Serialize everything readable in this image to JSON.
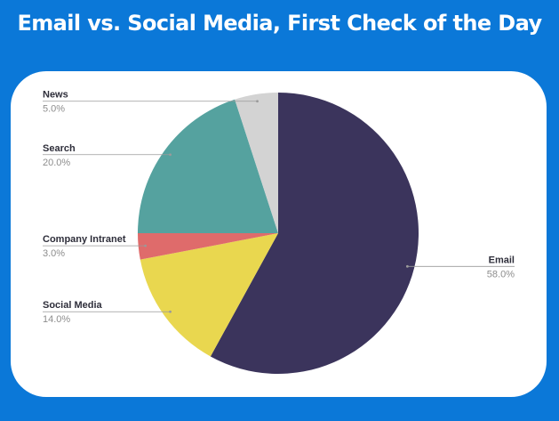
{
  "title": "Email vs. Social Media, First Check of the Day",
  "chart_data": {
    "type": "pie",
    "title": "Email vs. Social Media, First Check of the Day",
    "slices": [
      {
        "label": "Email",
        "value": 58.0,
        "display": "58.0%",
        "color": "#3b345c",
        "label_side": "right"
      },
      {
        "label": "Social Media",
        "value": 14.0,
        "display": "14.0%",
        "color": "#e9d74f",
        "label_side": "left"
      },
      {
        "label": "Company Intranet",
        "value": 3.0,
        "display": "3.0%",
        "color": "#df6b6b",
        "label_side": "left"
      },
      {
        "label": "Search",
        "value": 20.0,
        "display": "20.0%",
        "color": "#55a29f",
        "label_side": "left"
      },
      {
        "label": "News",
        "value": 5.0,
        "display": "5.0%",
        "color": "#d3d3d3",
        "label_side": "left"
      }
    ],
    "start_angle_deg": 0,
    "direction": "clockwise"
  }
}
